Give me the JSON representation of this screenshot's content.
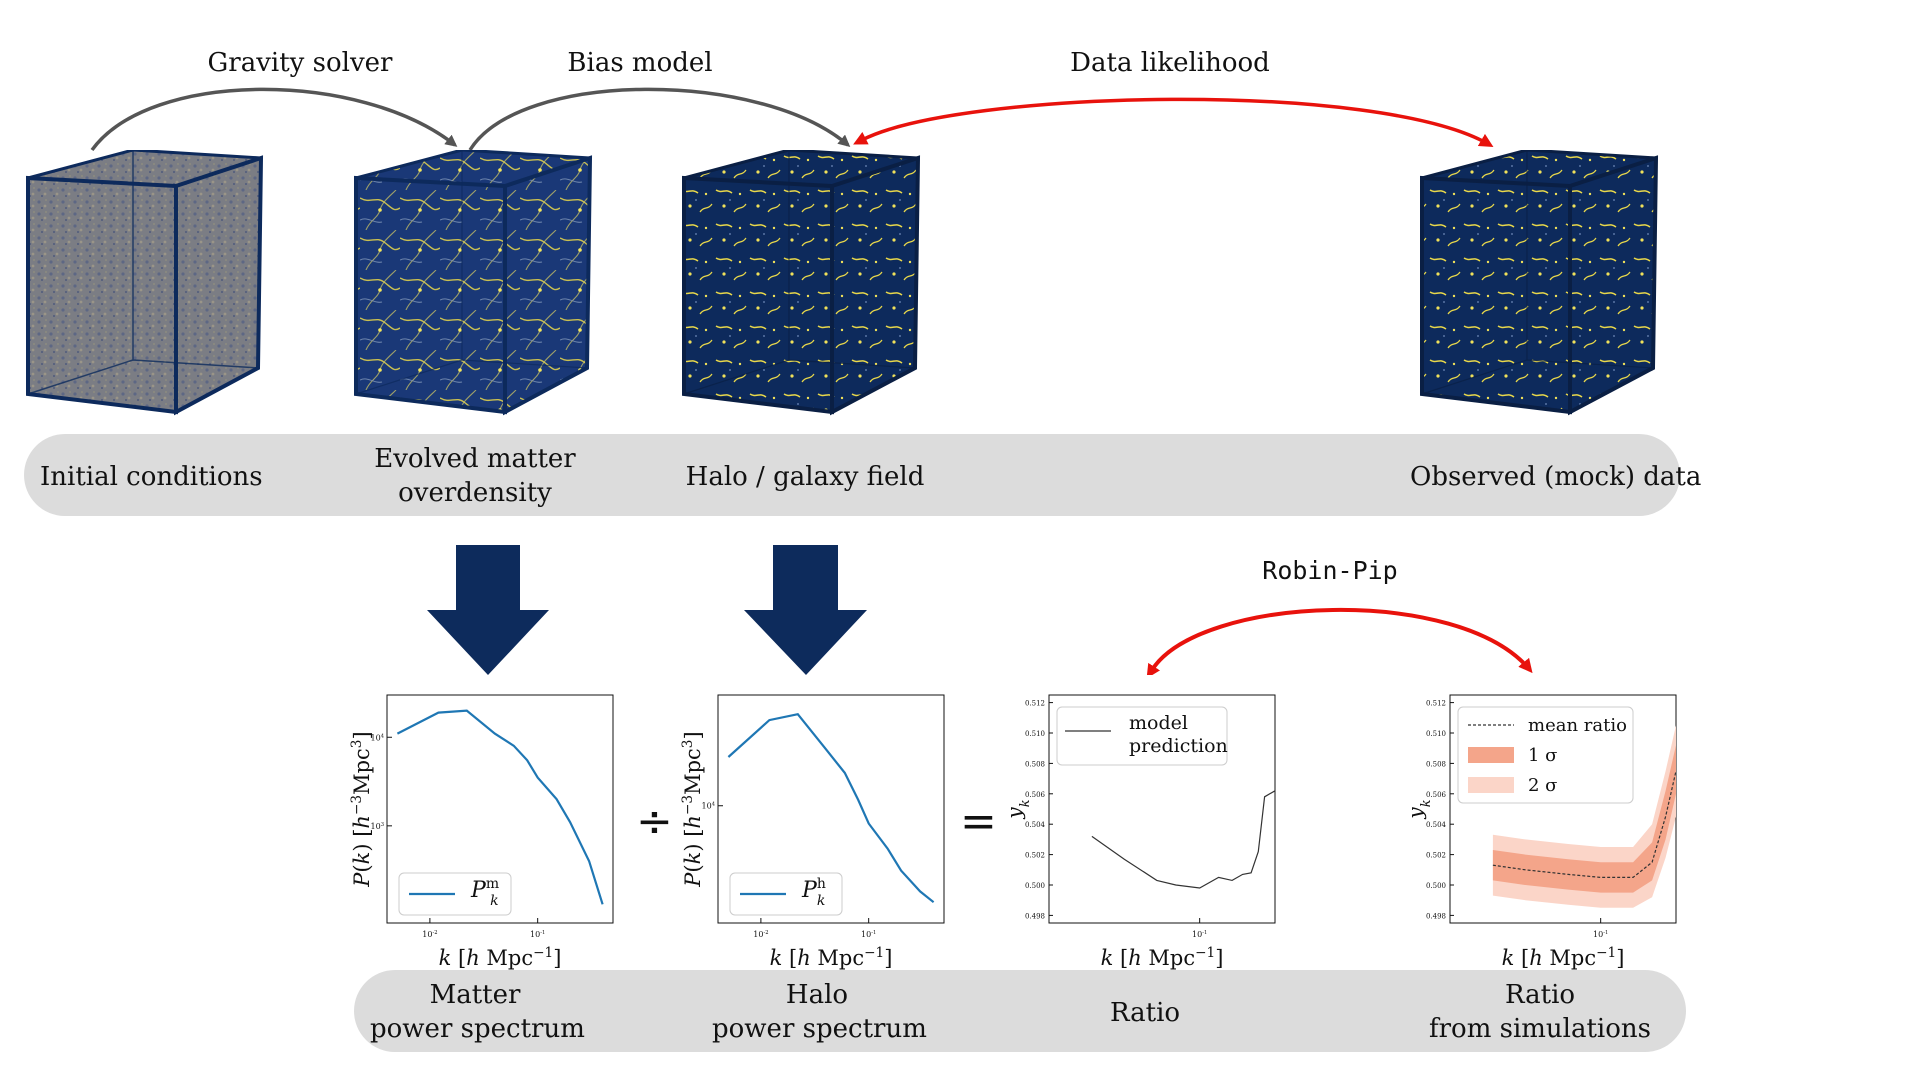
{
  "arrows": {
    "gravity_solver": "Gravity solver",
    "bias_model": "Bias model",
    "data_likelihood": "Data likelihood",
    "robin_pip": "Robin-Pip"
  },
  "fields": [
    {
      "label_1": "Initial conditions",
      "label_2": ""
    },
    {
      "label_1": "Evolved matter",
      "label_2": "overdensity"
    },
    {
      "label_1": "Halo / galaxy field",
      "label_2": ""
    },
    {
      "label_1": "Observed (mock) data",
      "label_2": ""
    }
  ],
  "summaries": [
    {
      "label_1": "Matter",
      "label_2": "power spectrum"
    },
    {
      "label_1": "Halo",
      "label_2": "power spectrum"
    },
    {
      "label_1": "Ratio",
      "label_2": ""
    },
    {
      "label_1": "Ratio",
      "label_2": "from simulations"
    }
  ],
  "operators": {
    "divide": "÷",
    "equals": "="
  },
  "colors": {
    "cube_dark": "#0d2a5c",
    "cube_initial": "#7d7f86",
    "filament": "#e9d84a",
    "down_arrow": "#0d2b5c",
    "red_arrow": "#e8120c",
    "gray_arrow": "#555555",
    "pill": "#dcdcdc",
    "series_blue": "#1f77b4",
    "band_1sigma": "#f4a58a",
    "band_2sigma": "#fbd5c8"
  },
  "chart_data": [
    {
      "type": "line",
      "xscale": "log",
      "yscale": "log",
      "xlabel": "k [h Mpc^-1]",
      "ylabel": "P(k) [h^-3Mpc^3]",
      "xtick_labels": [
        "10^-2",
        "10^-1"
      ],
      "ytick_labels": [
        "10^4",
        "10^3"
      ],
      "legend_placement": "lower-left",
      "series": [
        {
          "name": "P_k^m",
          "x": [
            0.005,
            0.012,
            0.022,
            0.04,
            0.06,
            0.08,
            0.1,
            0.15,
            0.2,
            0.3,
            0.4
          ],
          "y": [
            11000,
            19000,
            20000,
            11000,
            8000,
            5500,
            3500,
            2000,
            1100,
            400,
            130
          ]
        }
      ]
    },
    {
      "type": "line",
      "xscale": "log",
      "yscale": "log",
      "xlabel": "k [h Mpc^-1]",
      "ylabel": "P(k) [h^-3Mpc^3]",
      "xtick_labels": [
        "10^-2",
        "10^-1"
      ],
      "ytick_labels": [
        "10^4"
      ],
      "legend_placement": "lower-left",
      "series": [
        {
          "name": "P_k^h",
          "x": [
            0.005,
            0.012,
            0.022,
            0.04,
            0.06,
            0.08,
            0.1,
            0.15,
            0.2,
            0.3,
            0.4
          ],
          "y": [
            22000,
            40000,
            44000,
            25000,
            17000,
            11000,
            7500,
            5000,
            3500,
            2500,
            2100
          ]
        }
      ]
    },
    {
      "type": "line",
      "xscale": "log",
      "xlabel": "k [h Mpc^-1]",
      "ylabel": "y_k",
      "ylim": [
        0.4975,
        0.5125
      ],
      "yticks": [
        "0.512",
        "0.510",
        "0.508",
        "0.506",
        "0.504",
        "0.502",
        "0.500",
        "0.498"
      ],
      "xtick_labels": [
        "10^-1"
      ],
      "legend_placement": "top-left",
      "series": [
        {
          "name": "model prediction",
          "x": [
            0.01,
            0.02,
            0.04,
            0.06,
            0.1,
            0.15,
            0.2,
            0.25,
            0.3,
            0.35,
            0.4,
            0.5
          ],
          "y": [
            0.5032,
            0.5017,
            0.5003,
            0.5,
            0.4998,
            0.5005,
            0.5003,
            0.5007,
            0.5008,
            0.5022,
            0.5058,
            0.5062
          ]
        }
      ]
    },
    {
      "type": "area",
      "xscale": "log",
      "xlabel": "k [h Mpc^-1]",
      "ylabel": "y_k",
      "ylim": [
        0.4975,
        0.5125
      ],
      "yticks": [
        "0.512",
        "0.510",
        "0.508",
        "0.506",
        "0.504",
        "0.502",
        "0.500",
        "0.498"
      ],
      "xtick_labels": [
        "10^-1"
      ],
      "legend_placement": "top-left",
      "series": [
        {
          "name": "mean ratio",
          "x": [
            0.01,
            0.02,
            0.05,
            0.1,
            0.2,
            0.3,
            0.4,
            0.5
          ],
          "y": [
            0.5013,
            0.501,
            0.5007,
            0.5005,
            0.5005,
            0.5015,
            0.5045,
            0.5075
          ]
        },
        {
          "name": "1 σ",
          "x": [
            0.01,
            0.02,
            0.05,
            0.1,
            0.2,
            0.3,
            0.4,
            0.5
          ],
          "low": [
            0.5003,
            0.5,
            0.4997,
            0.4995,
            0.4995,
            0.5003,
            0.503,
            0.506
          ],
          "high": [
            0.5023,
            0.502,
            0.5017,
            0.5015,
            0.5015,
            0.5028,
            0.5062,
            0.5092
          ]
        },
        {
          "name": "2 σ",
          "x": [
            0.01,
            0.02,
            0.05,
            0.1,
            0.2,
            0.3,
            0.4,
            0.5
          ],
          "low": [
            0.4993,
            0.499,
            0.4987,
            0.4985,
            0.4985,
            0.4992,
            0.5018,
            0.5045
          ],
          "high": [
            0.5033,
            0.503,
            0.5027,
            0.5025,
            0.5025,
            0.504,
            0.5075,
            0.5105
          ]
        }
      ]
    }
  ]
}
